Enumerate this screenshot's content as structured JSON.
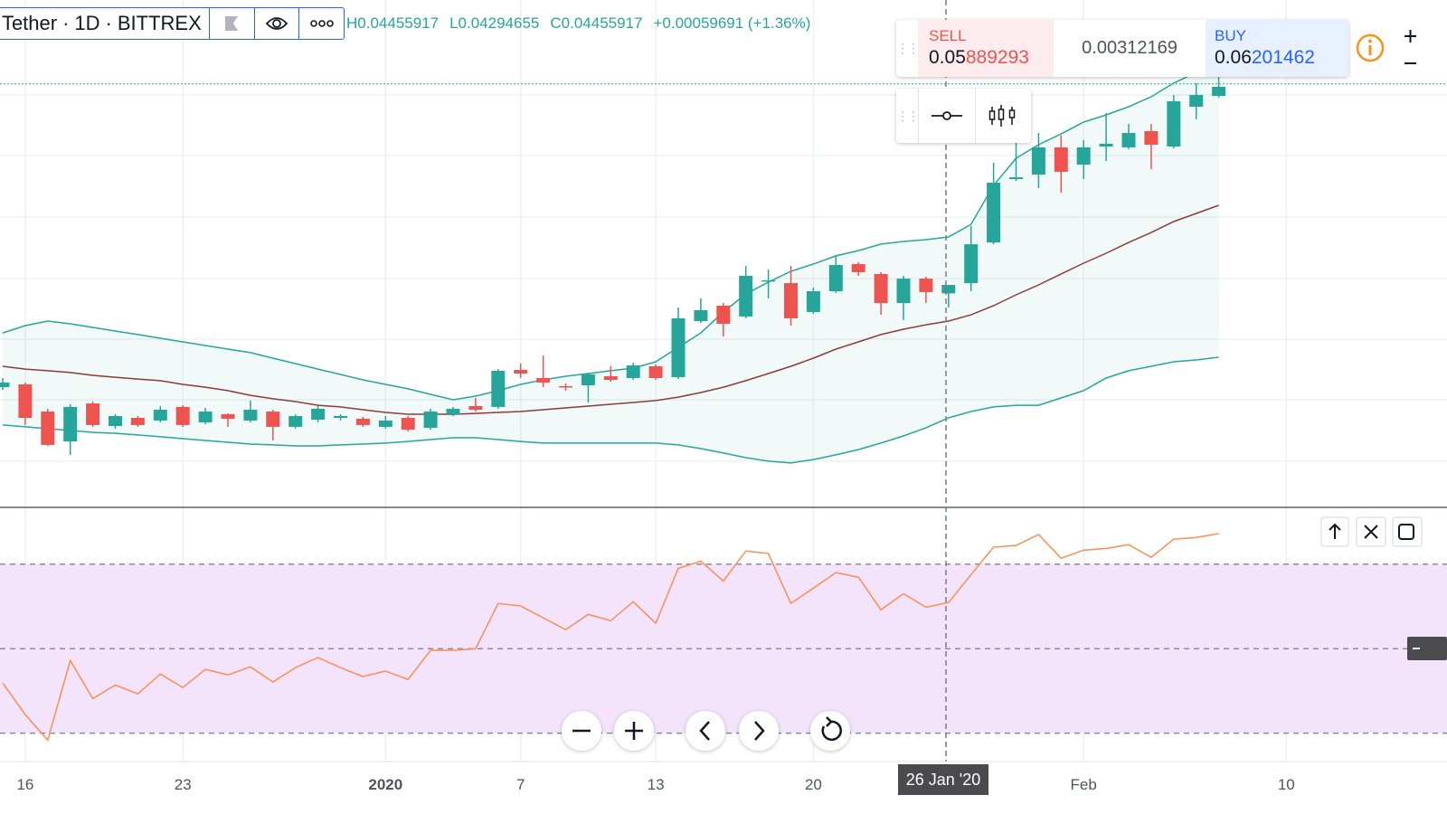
{
  "toolbar": {
    "symbol": "Tether",
    "separator": "·",
    "interval": "1D",
    "exchange": "BITTREX"
  },
  "ohlc_legend": [
    "H0.04455917",
    "L0.04294655",
    "C0.04455917",
    "+0.00059691 (+1.36%)"
  ],
  "trade_widget": {
    "sell_label": "SELL",
    "sell_price": [
      "0.05",
      "889293"
    ],
    "spread": "0.00312169",
    "buy_label": "BUY",
    "buy_price": [
      "0.06",
      "201462"
    ]
  },
  "crosshair_label": "26 Jan '20",
  "chart_data": {
    "type": "candlestick",
    "categories": [
      null,
      "16",
      null,
      null,
      null,
      null,
      null,
      null,
      "23",
      null,
      null,
      null,
      null,
      null,
      null,
      null,
      null,
      "2020",
      null,
      null,
      null,
      null,
      null,
      "7",
      null,
      null,
      null,
      null,
      null,
      "13",
      null,
      null,
      null,
      null,
      null,
      null,
      "20",
      null,
      null,
      null,
      null,
      null,
      null,
      null,
      null,
      null,
      null,
      null,
      "Feb",
      null,
      null,
      null,
      null,
      null,
      null,
      null,
      null,
      "10"
    ],
    "ylim": [
      0.02876,
      0.06488
    ],
    "ygrid": [
      0.03199,
      0.03637,
      0.04069,
      0.04501,
      0.0494,
      0.05379,
      0.05811
    ],
    "grid": true,
    "up_color": "#26a69a",
    "down_color": "#ef5350",
    "price_line": 0.0589,
    "candles": {
      "open": [
        0.03727,
        0.03747,
        0.03553,
        0.0334,
        0.03611,
        0.0345,
        0.03508,
        0.03489,
        0.03586,
        0.03476,
        0.03534,
        0.03489,
        0.03553,
        0.03444,
        0.03495,
        0.03508,
        0.03502,
        0.03444,
        0.03508,
        0.03437,
        0.03534,
        0.03592,
        0.03586,
        0.0385,
        0.03792,
        0.03734,
        0.0374,
        0.03805,
        0.03792,
        0.03876,
        0.03798,
        0.04198,
        0.04308,
        0.04231,
        0.04482,
        0.04469,
        0.04263,
        0.04411,
        0.04605,
        0.04534,
        0.04327,
        0.04501,
        0.04396,
        0.04469,
        0.04759,
        0.05211,
        0.05243,
        0.05437,
        0.05314,
        0.05443,
        0.05437,
        0.05553,
        0.05443,
        0.05727,
        0.05804,
        null,
        null,
        null
      ],
      "high": [
        0.03792,
        0.0376,
        0.03573,
        0.03605,
        0.03624,
        0.03534,
        0.03521,
        0.03592,
        0.03598,
        0.03579,
        0.0354,
        0.03631,
        0.03566,
        0.03534,
        0.03592,
        0.03534,
        0.03515,
        0.03521,
        0.03521,
        0.03573,
        0.03586,
        0.0365,
        0.03856,
        0.03895,
        0.03953,
        0.03753,
        0.03831,
        0.03876,
        0.03902,
        0.03889,
        0.04295,
        0.0436,
        0.04327,
        0.04592,
        0.04566,
        0.04592,
        0.04437,
        0.04669,
        0.04618,
        0.04547,
        0.04521,
        0.04514,
        0.04455917,
        0.04876,
        0.05327,
        0.05521,
        0.0554,
        0.05521,
        0.05488,
        0.05682,
        0.05604,
        0.05604,
        0.05811,
        0.05895,
        0.05972,
        null,
        null,
        null
      ],
      "low": [
        0.03708,
        0.03457,
        0.03308,
        0.03244,
        0.03444,
        0.03431,
        0.03444,
        0.03476,
        0.03444,
        0.03463,
        0.03444,
        0.03476,
        0.03347,
        0.03431,
        0.03476,
        0.03489,
        0.03444,
        0.03431,
        0.03411,
        0.03424,
        0.03521,
        0.03553,
        0.03573,
        0.03792,
        0.03727,
        0.03702,
        0.03618,
        0.03766,
        0.03779,
        0.03779,
        0.03785,
        0.04185,
        0.04089,
        0.04218,
        0.0436,
        0.04166,
        0.0425,
        0.04398,
        0.04521,
        0.04243,
        0.04205,
        0.04327,
        0.04294655,
        0.04411,
        0.04746,
        0.05198,
        0.05146,
        0.05114,
        0.05211,
        0.0534,
        0.05424,
        0.05282,
        0.0543,
        0.05637,
        0.05791,
        null,
        null,
        null
      ],
      "close": [
        0.0376,
        0.03508,
        0.03315,
        0.03586,
        0.03457,
        0.03521,
        0.03457,
        0.03566,
        0.03457,
        0.03553,
        0.03502,
        0.03566,
        0.03444,
        0.03521,
        0.03573,
        0.03521,
        0.03457,
        0.03489,
        0.03424,
        0.03553,
        0.03573,
        0.03566,
        0.03844,
        0.03824,
        0.0376,
        0.03727,
        0.03818,
        0.03779,
        0.03882,
        0.03792,
        0.04218,
        0.04276,
        0.04179,
        0.04521,
        0.04489,
        0.04218,
        0.04411,
        0.04598,
        0.04547,
        0.04327,
        0.04501,
        0.04405,
        0.04455917,
        0.04746,
        0.05185,
        0.05224,
        0.05437,
        0.05263,
        0.05437,
        0.05463,
        0.0554,
        0.05456,
        0.05766,
        0.05811,
        0.05869,
        null,
        null,
        null
      ]
    },
    "bollinger": {
      "band_color": "#26a69a",
      "basis_color": "#8d3b3b",
      "upper": [
        0.04114,
        0.04166,
        0.04198,
        0.04179,
        0.04153,
        0.04127,
        0.04102,
        0.04076,
        0.0405,
        0.04024,
        0.03998,
        0.03973,
        0.03934,
        0.03895,
        0.03856,
        0.03818,
        0.03779,
        0.03747,
        0.03715,
        0.03676,
        0.03637,
        0.03663,
        0.03702,
        0.03747,
        0.03779,
        0.03805,
        0.03824,
        0.03844,
        0.03863,
        0.03908,
        0.04011,
        0.04114,
        0.04263,
        0.04392,
        0.04476,
        0.04553,
        0.04605,
        0.04663,
        0.04701,
        0.04747,
        0.04766,
        0.04779,
        0.04798,
        0.04888,
        0.05166,
        0.05359,
        0.05456,
        0.05533,
        0.05617,
        0.05669,
        0.05727,
        0.05798,
        0.05895,
        0.05972,
        0.06049,
        null,
        null,
        null
      ],
      "basis": [
        0.03876,
        0.03856,
        0.03844,
        0.03831,
        0.03811,
        0.03798,
        0.03785,
        0.03773,
        0.03747,
        0.03727,
        0.03702,
        0.03669,
        0.03644,
        0.03624,
        0.03598,
        0.03586,
        0.03566,
        0.03547,
        0.03534,
        0.03534,
        0.03534,
        0.0354,
        0.03547,
        0.03553,
        0.03566,
        0.03579,
        0.03592,
        0.03605,
        0.03618,
        0.03631,
        0.03656,
        0.03689,
        0.03727,
        0.03773,
        0.03824,
        0.03876,
        0.03934,
        0.03998,
        0.0405,
        0.04102,
        0.0414,
        0.04172,
        0.04198,
        0.04243,
        0.04308,
        0.04385,
        0.04456,
        0.04534,
        0.04611,
        0.04682,
        0.04759,
        0.0483,
        0.04908,
        0.04966,
        0.05024,
        null,
        null,
        null
      ],
      "lower": [
        0.03457,
        0.03444,
        0.03431,
        0.03418,
        0.03405,
        0.03398,
        0.03386,
        0.03373,
        0.0336,
        0.03347,
        0.03334,
        0.03321,
        0.03315,
        0.03308,
        0.03308,
        0.03315,
        0.03321,
        0.03328,
        0.0334,
        0.03353,
        0.03366,
        0.03366,
        0.03353,
        0.0334,
        0.03328,
        0.03328,
        0.03328,
        0.03328,
        0.03328,
        0.03328,
        0.03315,
        0.03289,
        0.03257,
        0.03224,
        0.03199,
        0.03186,
        0.03211,
        0.03244,
        0.03282,
        0.03328,
        0.03379,
        0.03437,
        0.03508,
        0.03553,
        0.03586,
        0.03598,
        0.03598,
        0.0365,
        0.03702,
        0.03792,
        0.03844,
        0.03876,
        0.03908,
        0.03921,
        0.0394,
        null,
        null,
        null
      ]
    },
    "rsi": {
      "color": "#f7935d",
      "band_color": "#f3e4fc",
      "ylim": [
        23.3,
        83.2
      ],
      "levels": [
        30,
        50,
        70
      ],
      "values": [
        41.9,
        34.4,
        28.4,
        47.2,
        38.2,
        41.4,
        39.3,
        44.0,
        40.8,
        45.1,
        43.8,
        45.7,
        42.1,
        45.5,
        47.9,
        45.5,
        43.4,
        44.7,
        42.7,
        49.6,
        49.6,
        50.0,
        60.7,
        60.1,
        57.3,
        54.5,
        58.1,
        56.6,
        61.1,
        56.0,
        69.0,
        70.7,
        66.0,
        73.1,
        72.5,
        60.7,
        64.3,
        68.0,
        66.9,
        59.2,
        63.0,
        59.8,
        60.9,
        67.5,
        74.0,
        74.4,
        77.0,
        71.4,
        73.3,
        73.7,
        74.6,
        71.6,
        75.9,
        76.3,
        77.2,
        null,
        null,
        null
      ]
    }
  }
}
